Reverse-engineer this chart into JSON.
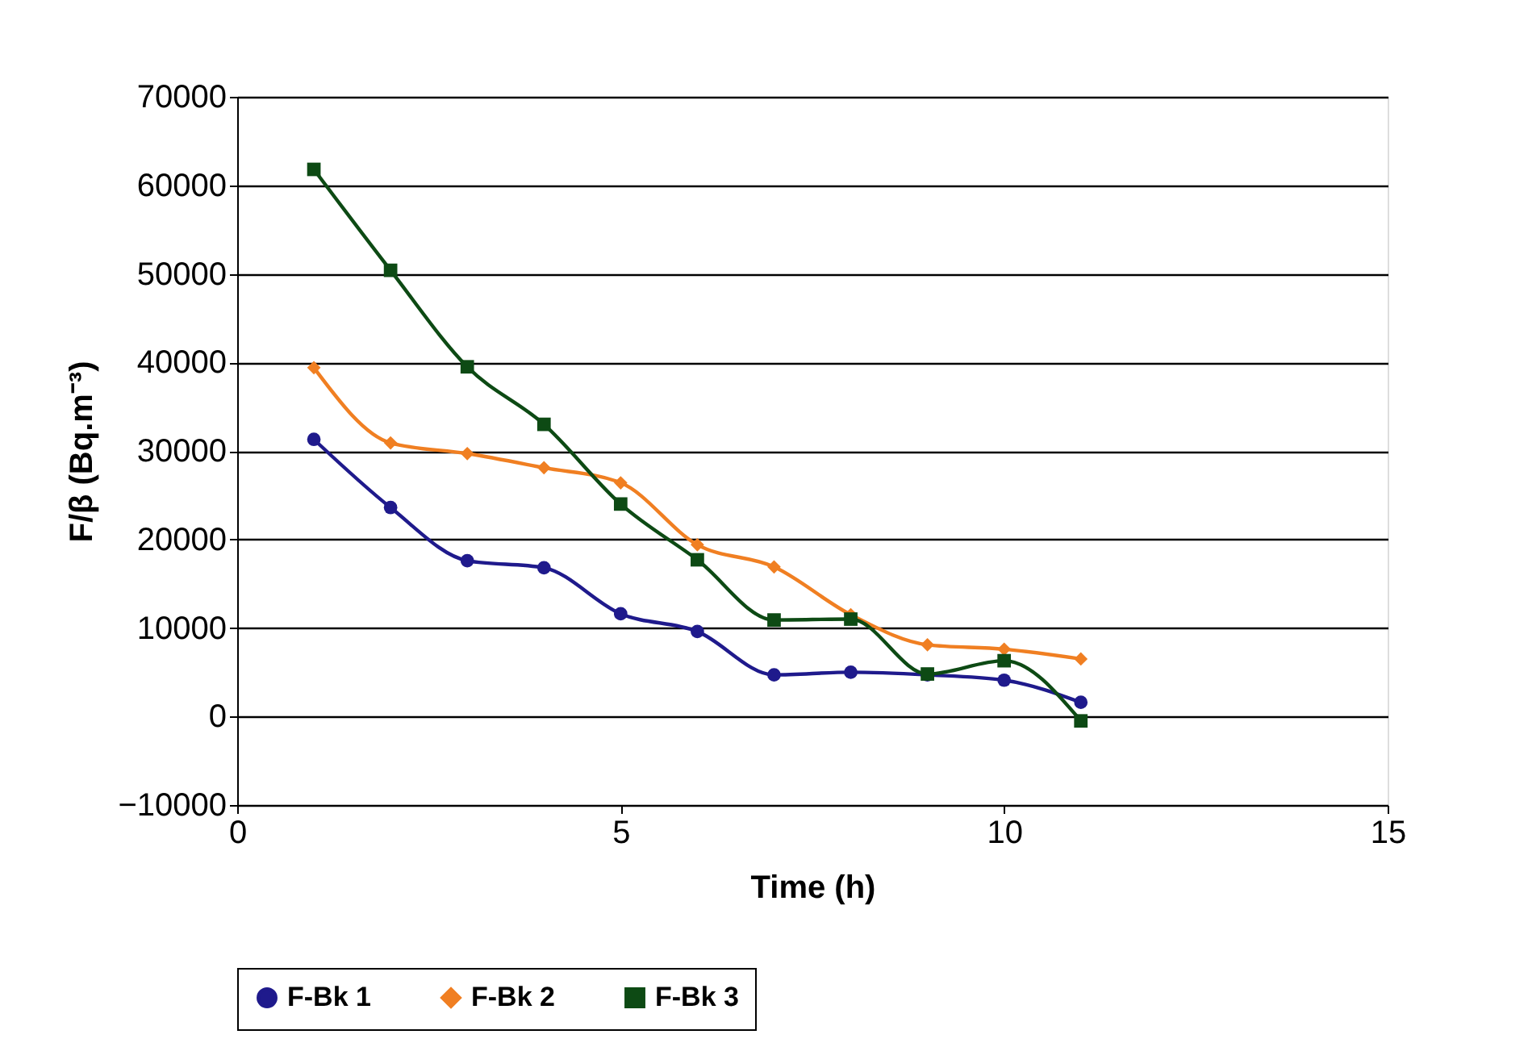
{
  "chart_data": {
    "type": "line",
    "xlabel": "Time (h)",
    "ylabel": "F/β (Bq.m⁻³)",
    "x": [
      1,
      2,
      3,
      4,
      5,
      6,
      7,
      8,
      9,
      10,
      11
    ],
    "xlim": [
      0,
      15
    ],
    "xticks": [
      0,
      5,
      10,
      15
    ],
    "ylim": [
      -10000,
      70000
    ],
    "yticks": [
      -10000,
      0,
      10000,
      20000,
      30000,
      40000,
      50000,
      60000,
      70000
    ],
    "grid": "y",
    "legend": "bottom",
    "series": [
      {
        "name": "F-Bk 1",
        "color": "#1f1a8c",
        "marker": "circle",
        "values": [
          31300,
          23600,
          17600,
          16800,
          11600,
          9600,
          4700,
          5000,
          4700,
          4100,
          1600
        ]
      },
      {
        "name": "F-Bk 2",
        "color": "#f07f22",
        "marker": "diamond",
        "values": [
          39400,
          30900,
          29700,
          28100,
          26400,
          19400,
          16900,
          11500,
          8100,
          7600,
          6500
        ]
      },
      {
        "name": "F-Bk 3",
        "color": "#0d4a14",
        "marker": "square",
        "values": [
          61800,
          50400,
          39500,
          33000,
          24000,
          17700,
          10900,
          11000,
          4800,
          6300,
          -500
        ]
      }
    ]
  }
}
